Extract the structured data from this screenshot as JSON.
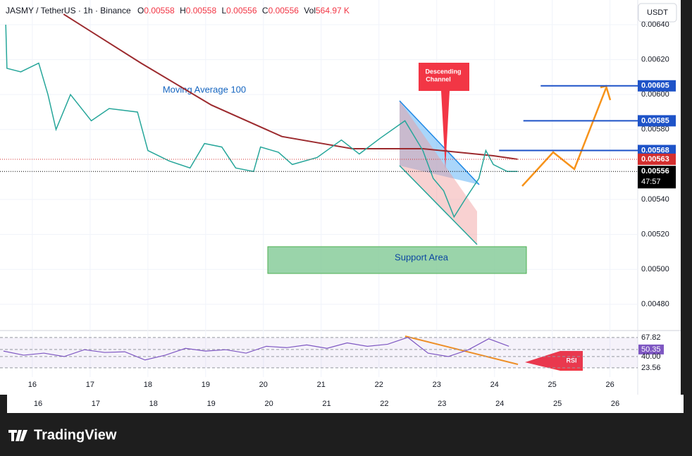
{
  "header": {
    "symbol": "JASMY / TetherUS · 1h · Binance",
    "o_label": "O",
    "o": "0.00558",
    "h_label": "H",
    "h": "0.00558",
    "l_label": "L",
    "l": "0.00556",
    "c_label": "C",
    "c": "0.00556",
    "vol_label": "Vol",
    "vol": "564.97 K"
  },
  "currency_button": "USDT",
  "price_axis": {
    "ylim": [
      0.004654,
      0.006541
    ],
    "yticks": [
      {
        "value": 0.0064,
        "label": "0.00640"
      },
      {
        "value": 0.0062,
        "label": "0.00620"
      },
      {
        "value": 0.006,
        "label": "0.00600"
      },
      {
        "value": 0.0058,
        "label": "0.00580"
      },
      {
        "value": 0.0054,
        "label": "0.00540"
      },
      {
        "value": 0.0052,
        "label": "0.00520"
      },
      {
        "value": 0.005,
        "label": "0.00500"
      },
      {
        "value": 0.0048,
        "label": "0.00480"
      }
    ]
  },
  "time_axis": {
    "xlim": [
      15.44,
      26.48
    ],
    "xticks": [
      16,
      17,
      18,
      19,
      20,
      21,
      22,
      23,
      24,
      25,
      26
    ]
  },
  "price_series": {
    "color": "#26a69a",
    "x": [
      15.54,
      15.56,
      15.8,
      16.11,
      16.27,
      16.41,
      16.66,
      17.02,
      17.33,
      17.82,
      18.0,
      18.37,
      18.73,
      18.98,
      19.28,
      19.52,
      19.83,
      19.95,
      20.26,
      20.5,
      20.93,
      21.35,
      21.66,
      22.02,
      22.45,
      22.76,
      22.94,
      23.12,
      23.3,
      23.49,
      23.73,
      23.85,
      23.98,
      24.22,
      24.4
    ],
    "values": [
      0.0064,
      0.00615,
      0.00613,
      0.00618,
      0.006,
      0.0058,
      0.006,
      0.00585,
      0.00592,
      0.0059,
      0.00568,
      0.00562,
      0.00558,
      0.00572,
      0.0057,
      0.00558,
      0.00556,
      0.0057,
      0.00567,
      0.0056,
      0.00564,
      0.00574,
      0.00566,
      0.00575,
      0.00585,
      0.00568,
      0.00552,
      0.00545,
      0.0053,
      0.0054,
      0.00552,
      0.00568,
      0.0056,
      0.00556,
      0.00556
    ]
  },
  "moving_average": {
    "label": "Moving Average 100",
    "color": "#9c2a2e",
    "x": [
      16.54,
      17.88,
      19.1,
      20.32,
      21.54,
      22.76,
      23.98,
      24.4
    ],
    "values": [
      0.00646,
      0.00618,
      0.00594,
      0.00576,
      0.00569,
      0.00569,
      0.00565,
      0.00563
    ]
  },
  "targets": [
    {
      "value": 0.00605,
      "label": "0.00605",
      "from": 24.8
    },
    {
      "value": 0.00585,
      "label": "0.00585",
      "from": 24.5
    },
    {
      "value": 0.00568,
      "label": "0.00568",
      "from": 24.08
    }
  ],
  "price_labels": [
    {
      "value": 0.00563,
      "label": "0.00563",
      "color": "#d32f2f"
    },
    {
      "value": 0.00556,
      "label": "0.00556",
      "color": "#000000"
    }
  ],
  "countdown": "47:57",
  "descending_channel": [
    "Descending",
    "Channel"
  ],
  "support_area": {
    "label": "Support Area",
    "range": [
      0.00498,
      0.00513
    ]
  },
  "rsi": {
    "label": "RSI",
    "color": "#7e57c2",
    "ylim": [
      10,
      77
    ],
    "yticks": [
      {
        "value": 67.82,
        "label": "67.82"
      },
      {
        "value": 50.35,
        "label": "50.35"
      },
      {
        "value": 40,
        "label": "40.00"
      },
      {
        "value": 23.56,
        "label": "23.56"
      }
    ],
    "x": [
      15.5,
      15.85,
      16.2,
      16.55,
      16.9,
      17.25,
      17.6,
      17.95,
      18.3,
      18.65,
      19,
      19.35,
      19.7,
      20.05,
      20.4,
      20.75,
      21.1,
      21.45,
      21.8,
      22.15,
      22.5,
      22.85,
      23.2,
      23.55,
      23.9,
      24.25
    ],
    "values": [
      48,
      42,
      45,
      40,
      50,
      46,
      47,
      35,
      42,
      52,
      48,
      50,
      45,
      55,
      53,
      57,
      52,
      60,
      55,
      58,
      68,
      45,
      40,
      50,
      66,
      55
    ]
  },
  "brand": "TradingView"
}
